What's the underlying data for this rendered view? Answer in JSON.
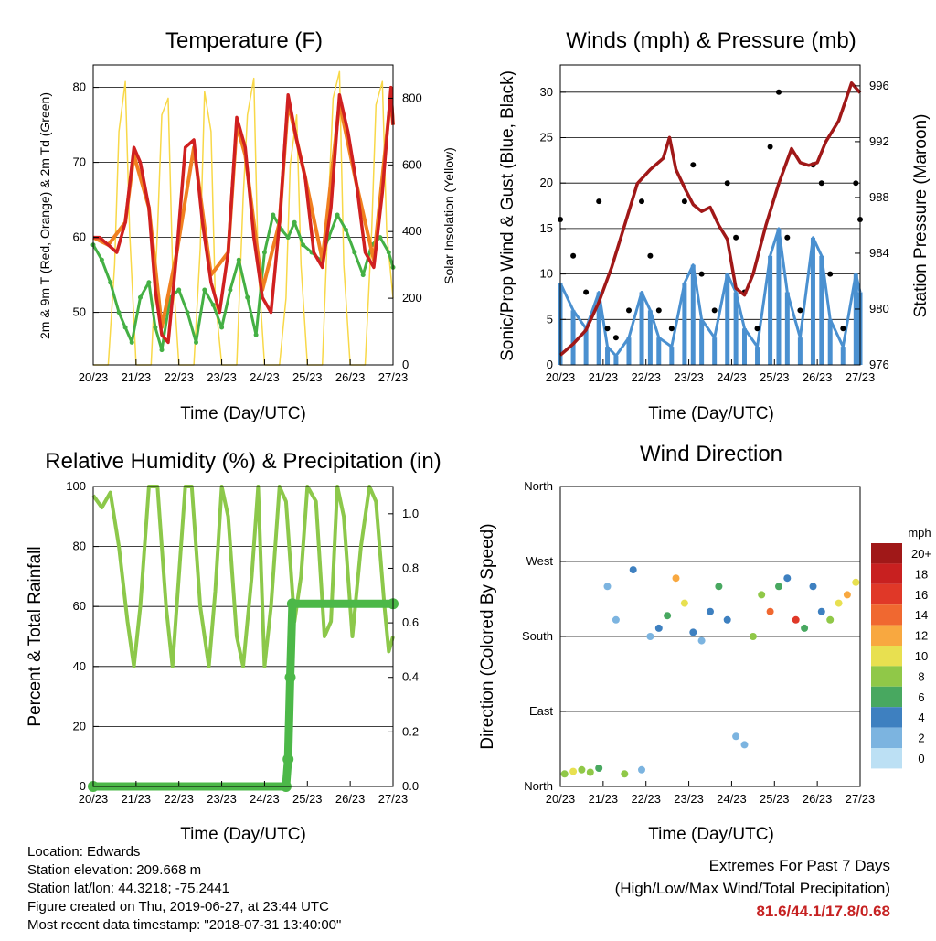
{
  "x_ticks": [
    "20/23",
    "21/23",
    "22/23",
    "23/23",
    "24/23",
    "25/23",
    "26/23",
    "27/23"
  ],
  "x_axis_label": "Time (Day/UTC)",
  "temperature": {
    "title": "Temperature (F)",
    "ylabel_left": "2m & 9m T (Red, Orange) & 2m Td (Green)",
    "ylabel_right": "Solar Insolation (Yellow)",
    "left_ticks": [
      "50",
      "60",
      "70",
      "80"
    ],
    "right_ticks": [
      "0",
      "200",
      "400",
      "600",
      "800"
    ],
    "colors": {
      "t2m": "#d02020",
      "t9m": "#f08020",
      "td": "#44b044",
      "solar": "#f8d848"
    }
  },
  "winds": {
    "title": "Winds (mph) & Pressure (mb)",
    "ylabel_left": "Sonic/Prop Wind & Gust (Blue, Black)",
    "ylabel_right": "Station Pressure (Maroon)",
    "left_ticks": [
      "0",
      "5",
      "10",
      "15",
      "20",
      "25",
      "30"
    ],
    "right_ticks": [
      "976",
      "980",
      "984",
      "988",
      "992",
      "996"
    ],
    "colors": {
      "wind": "#4a90d0",
      "gust": "#000000",
      "pressure": "#a01818"
    }
  },
  "humidity": {
    "title": "Relative Humidity (%) & Precipitation (in)",
    "ylabel_left": "Percent & Total Rainfall",
    "left_ticks": [
      "0",
      "20",
      "40",
      "60",
      "80",
      "100"
    ],
    "right_ticks": [
      "0.0",
      "0.2",
      "0.4",
      "0.6",
      "0.8",
      "1.0"
    ],
    "colors": {
      "rh": "#8cc84a",
      "precip": "#4cb848"
    }
  },
  "direction": {
    "title": "Wind Direction",
    "ylabel": "Direction (Colored By Speed)",
    "y_ticks": [
      "North",
      "East",
      "South",
      "West",
      "North"
    ],
    "legend_title": "mph",
    "legend_labels": [
      "20+",
      "18",
      "16",
      "14",
      "12",
      "10",
      "8",
      "6",
      "4",
      "2",
      "0"
    ],
    "legend_colors": [
      "#a01818",
      "#c82020",
      "#e03828",
      "#f06830",
      "#f8a840",
      "#e8e050",
      "#90c848",
      "#48a860",
      "#3e80c0",
      "#7cb4e0",
      "#bce0f4"
    ]
  },
  "chart_data": [
    {
      "type": "line",
      "title": "Temperature (F)",
      "xlabel": "Time (Day/UTC)",
      "ylabel": "2m & 9m T (Red, Orange) & 2m Td (Green)",
      "ylabel_right": "Solar Insolation (Yellow)",
      "ylim": [
        43,
        83
      ],
      "ylim_right": [
        0,
        900
      ],
      "x_days": [
        20,
        27
      ],
      "series": [
        {
          "name": "2m T",
          "axis": "left",
          "x": [
            20.0,
            20.15,
            20.35,
            20.55,
            20.75,
            20.95,
            21.1,
            21.3,
            21.45,
            21.6,
            21.75,
            21.95,
            22.15,
            22.35,
            22.55,
            22.75,
            22.95,
            23.15,
            23.35,
            23.55,
            23.75,
            23.95,
            24.15,
            24.35,
            24.55,
            24.75,
            24.95,
            25.15,
            25.35,
            25.55,
            25.75,
            25.95,
            26.15,
            26.35,
            26.55,
            26.75,
            26.95,
            27.0
          ],
          "y": [
            60,
            60,
            59,
            58,
            62,
            72,
            70,
            64,
            53,
            47,
            46,
            58,
            72,
            73,
            62,
            54,
            50,
            58,
            76,
            72,
            60,
            52,
            50,
            62,
            79,
            73,
            68,
            58,
            56,
            64,
            79,
            74,
            67,
            58,
            56,
            66,
            80,
            75
          ]
        },
        {
          "name": "9m T",
          "axis": "left",
          "x": [
            20.0,
            20.35,
            20.75,
            20.95,
            21.3,
            21.6,
            21.95,
            22.35,
            22.75,
            23.15,
            23.35,
            23.55,
            23.95,
            24.35,
            24.55,
            24.95,
            25.35,
            25.75,
            26.15,
            26.55,
            26.95,
            27.0
          ],
          "y": [
            60,
            59,
            62,
            71,
            64,
            48,
            58,
            72,
            55,
            58,
            75,
            71,
            53,
            62,
            78,
            68,
            57,
            78,
            67,
            57,
            79,
            75
          ]
        },
        {
          "name": "2m Td",
          "axis": "left",
          "x": [
            20.0,
            20.2,
            20.4,
            20.6,
            20.75,
            20.9,
            21.1,
            21.3,
            21.45,
            21.6,
            21.8,
            22.0,
            22.2,
            22.4,
            22.6,
            22.8,
            23.0,
            23.2,
            23.4,
            23.6,
            23.8,
            24.0,
            24.2,
            24.4,
            24.55,
            24.7,
            24.9,
            25.1,
            25.3,
            25.5,
            25.7,
            25.9,
            26.1,
            26.3,
            26.5,
            26.7,
            26.9,
            27.0
          ],
          "y": [
            59,
            57,
            54,
            50,
            48,
            46,
            52,
            54,
            48,
            45,
            52,
            53,
            50,
            46,
            53,
            51,
            48,
            53,
            57,
            52,
            47,
            58,
            63,
            61,
            60,
            62,
            59,
            58,
            57,
            60,
            63,
            61,
            58,
            55,
            59,
            60,
            58,
            56
          ]
        },
        {
          "name": "Solar",
          "axis": "right",
          "x": [
            20.0,
            20.35,
            20.5,
            20.6,
            20.75,
            20.85,
            21.0,
            21.35,
            21.5,
            21.6,
            21.75,
            21.85,
            22.0,
            22.35,
            22.5,
            22.6,
            22.75,
            22.85,
            23.0,
            23.35,
            23.5,
            23.6,
            23.75,
            23.85,
            24.0,
            24.35,
            24.5,
            24.6,
            24.75,
            24.85,
            25.0,
            25.35,
            25.5,
            25.6,
            25.75,
            25.85,
            26.0,
            26.35,
            26.5,
            26.6,
            26.75,
            26.85,
            27.0
          ],
          "y": [
            0,
            0,
            300,
            700,
            850,
            400,
            0,
            0,
            400,
            750,
            800,
            300,
            0,
            0,
            350,
            820,
            700,
            200,
            0,
            0,
            500,
            750,
            860,
            300,
            0,
            0,
            200,
            600,
            750,
            300,
            0,
            0,
            500,
            800,
            880,
            300,
            0,
            0,
            400,
            780,
            850,
            400,
            200
          ]
        }
      ]
    },
    {
      "type": "line",
      "title": "Winds (mph) & Pressure (mb)",
      "xlabel": "Time (Day/UTC)",
      "ylabel": "Sonic/Prop Wind & Gust (Blue, Black)",
      "ylabel_right": "Station Pressure (Maroon)",
      "ylim": [
        0,
        33
      ],
      "ylim_right": [
        976,
        997.5
      ],
      "x_days": [
        20,
        27
      ],
      "series": [
        {
          "name": "Wind",
          "axis": "left",
          "x": [
            20.0,
            20.3,
            20.6,
            20.9,
            21.1,
            21.3,
            21.6,
            21.9,
            22.1,
            22.3,
            22.6,
            22.9,
            23.1,
            23.3,
            23.6,
            23.9,
            24.1,
            24.3,
            24.6,
            24.9,
            25.1,
            25.3,
            25.6,
            25.9,
            26.1,
            26.3,
            26.6,
            26.9,
            27.0
          ],
          "y": [
            9,
            6,
            4,
            8,
            2,
            1,
            3,
            8,
            6,
            3,
            2,
            9,
            11,
            5,
            3,
            10,
            8,
            4,
            2,
            12,
            15,
            8,
            3,
            14,
            12,
            5,
            2,
            10,
            8
          ]
        },
        {
          "name": "Gust",
          "axis": "left",
          "x": [
            20.0,
            20.3,
            20.6,
            20.9,
            21.1,
            21.3,
            21.6,
            21.9,
            22.1,
            22.3,
            22.6,
            22.9,
            23.1,
            23.3,
            23.6,
            23.9,
            24.1,
            24.3,
            24.6,
            24.9,
            25.1,
            25.3,
            25.6,
            25.9,
            26.1,
            26.3,
            26.6,
            26.9,
            27.0
          ],
          "y": [
            16,
            12,
            8,
            18,
            4,
            3,
            6,
            18,
            12,
            6,
            4,
            18,
            22,
            10,
            6,
            20,
            14,
            8,
            4,
            24,
            30,
            14,
            6,
            22,
            20,
            10,
            4,
            20,
            16
          ]
        },
        {
          "name": "Pressure",
          "axis": "right",
          "x": [
            20.0,
            20.3,
            20.6,
            20.9,
            21.2,
            21.5,
            21.8,
            22.1,
            22.4,
            22.55,
            22.7,
            22.9,
            23.1,
            23.3,
            23.5,
            23.7,
            23.9,
            24.1,
            24.3,
            24.5,
            24.8,
            25.1,
            25.4,
            25.6,
            25.8,
            26.0,
            26.2,
            26.5,
            26.8,
            27.0
          ],
          "y": [
            976.7,
            977.5,
            978.5,
            980.5,
            983,
            986,
            989,
            990,
            990.8,
            992.3,
            990,
            988.7,
            987.5,
            987,
            987.3,
            986,
            985,
            981.5,
            981,
            982.5,
            986,
            989,
            991.5,
            990.5,
            990.3,
            990.5,
            992,
            993.5,
            996.2,
            995.5
          ]
        }
      ]
    },
    {
      "type": "line",
      "title": "Relative Humidity (%) & Precipitation (in)",
      "xlabel": "Time (Day/UTC)",
      "ylabel": "Percent & Total Rainfall",
      "ylim": [
        0,
        100
      ],
      "ylim_right": [
        0.0,
        1.1
      ],
      "x_days": [
        20,
        27
      ],
      "series": [
        {
          "name": "RH",
          "axis": "left",
          "x": [
            20.0,
            20.2,
            20.4,
            20.6,
            20.8,
            20.95,
            21.1,
            21.3,
            21.5,
            21.7,
            21.85,
            22.0,
            22.15,
            22.3,
            22.5,
            22.7,
            22.85,
            23.0,
            23.15,
            23.35,
            23.5,
            23.7,
            23.85,
            24.0,
            24.15,
            24.35,
            24.5,
            24.7,
            24.85,
            25.0,
            25.2,
            25.4,
            25.55,
            25.7,
            25.85,
            26.05,
            26.25,
            26.45,
            26.6,
            26.8,
            26.9,
            27.0
          ],
          "y": [
            97,
            93,
            98,
            80,
            55,
            40,
            60,
            100,
            100,
            60,
            40,
            70,
            100,
            100,
            60,
            40,
            65,
            100,
            90,
            50,
            40,
            70,
            100,
            40,
            60,
            100,
            95,
            55,
            70,
            100,
            95,
            50,
            55,
            100,
            90,
            50,
            80,
            100,
            95,
            60,
            45,
            50
          ]
        },
        {
          "name": "Precipitation",
          "axis": "right",
          "x": [
            20.0,
            24.5,
            24.55,
            24.6,
            24.65,
            27.0
          ],
          "y": [
            0.0,
            0.0,
            0.1,
            0.4,
            0.67,
            0.67
          ]
        }
      ]
    },
    {
      "type": "scatter",
      "title": "Wind Direction",
      "xlabel": "Time (Day/UTC)",
      "ylabel": "Direction (Colored By Speed)",
      "ylim": [
        0,
        360
      ],
      "x_days": [
        20,
        27
      ],
      "series": [
        {
          "name": "Direction",
          "x": [
            20.1,
            20.3,
            20.5,
            20.7,
            20.9,
            21.1,
            21.3,
            21.5,
            21.7,
            21.9,
            22.1,
            22.3,
            22.5,
            22.7,
            22.9,
            23.1,
            23.3,
            23.5,
            23.7,
            23.9,
            24.1,
            24.3,
            24.5,
            24.7,
            24.9,
            25.1,
            25.3,
            25.5,
            25.7,
            25.9,
            26.1,
            26.3,
            26.5,
            26.7,
            26.9
          ],
          "y": [
            15,
            18,
            20,
            17,
            22,
            240,
            200,
            15,
            260,
            20,
            180,
            190,
            205,
            250,
            220,
            185,
            175,
            210,
            240,
            200,
            60,
            50,
            180,
            230,
            210,
            240,
            250,
            200,
            190,
            240,
            210,
            200,
            220,
            230,
            245
          ],
          "speed": [
            8,
            10,
            9,
            8,
            7,
            3,
            2,
            9,
            4,
            3,
            2,
            4,
            6,
            12,
            10,
            4,
            3,
            5,
            6,
            4,
            2,
            3,
            8,
            9,
            14,
            6,
            4,
            16,
            7,
            5,
            4,
            8,
            10,
            12,
            10
          ]
        }
      ]
    }
  ],
  "footer": {
    "location": "Location: Edwards",
    "elevation": "Station elevation: 209.668 m",
    "latlon": "Station lat/lon: 44.3218; -75.2441",
    "created": "Figure created on Thu, 2019-06-27, at 23:44 UTC",
    "recent": "Most recent data timestamp: \"2018-07-31 13:40:00\"",
    "extremes_title": "Extremes For Past 7 Days",
    "extremes_subtitle": "(High/Low/Max Wind/Total Precipitation)",
    "extremes_values": "81.6/44.1/17.8/0.68"
  }
}
